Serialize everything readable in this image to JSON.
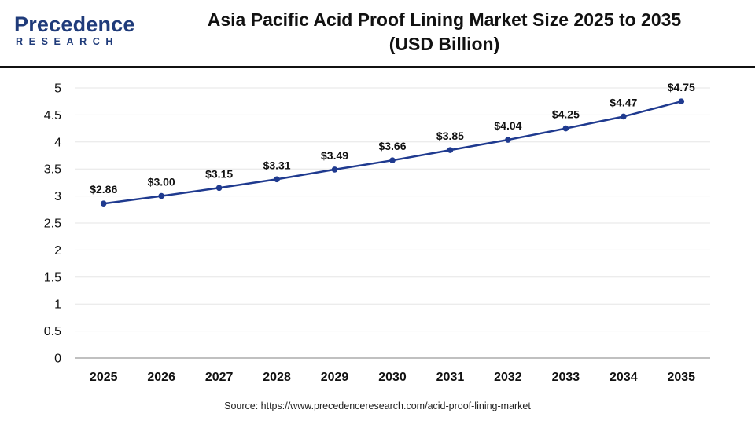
{
  "header": {
    "logo_word": "Precedence",
    "logo_sub": "RESEARCH",
    "title_line1": "Asia Pacific Acid Proof Lining Market Size 2025 to 2035",
    "title_line2": "(USD Billion)"
  },
  "source": "Source: https://www.precedenceresearch.com/acid-proof-lining-market",
  "colors": {
    "line": "#1f3a8f",
    "brand": "#1f3b7a",
    "grid": "#e6e6e6"
  },
  "chart_data": {
    "type": "line",
    "title": "Asia Pacific Acid Proof Lining Market Size 2025 to 2035 (USD Billion)",
    "xlabel": "",
    "ylabel": "",
    "categories": [
      "2025",
      "2026",
      "2027",
      "2028",
      "2029",
      "2030",
      "2031",
      "2032",
      "2033",
      "2034",
      "2035"
    ],
    "values": [
      2.86,
      3.0,
      3.15,
      3.31,
      3.49,
      3.66,
      3.85,
      4.04,
      4.25,
      4.47,
      4.75
    ],
    "data_labels": [
      "$2.86",
      "$3.00",
      "$3.15",
      "$3.31",
      "$3.49",
      "$3.66",
      "$3.85",
      "$4.04",
      "$4.25",
      "$4.47",
      "$4.75"
    ],
    "ylim": [
      0,
      5
    ],
    "yticks": [
      "0",
      "0.5",
      "1",
      "1.5",
      "2",
      "2.5",
      "3",
      "3.5",
      "4",
      "4.5",
      "5"
    ],
    "grid": true,
    "legend": "none"
  }
}
